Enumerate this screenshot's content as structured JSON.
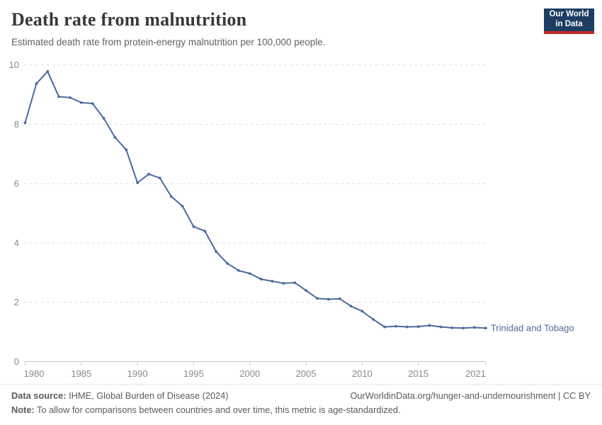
{
  "header": {
    "title": "Death rate from malnutrition",
    "subtitle": "Estimated death rate from protein-energy malnutrition per 100,000 people.",
    "logo": {
      "line1": "Our World",
      "line2": "in Data",
      "bg_color": "#1d3d63",
      "accent_color": "#c5292a"
    }
  },
  "chart_data": {
    "type": "line",
    "title": "Death rate from malnutrition",
    "xlabel": "",
    "ylabel": "",
    "x_range": [
      1980,
      2021
    ],
    "ylim": [
      0,
      10
    ],
    "x_ticks": [
      1980,
      1985,
      1990,
      1995,
      2000,
      2005,
      2010,
      2015,
      2021
    ],
    "y_ticks": [
      0,
      2,
      4,
      6,
      8,
      10
    ],
    "grid": "horizontal-dashed",
    "legend_position": "end-of-line-label",
    "line_color": "#4C6A9C",
    "axis_text_color": "#8a8a8a",
    "series": [
      {
        "name": "Trinidad and Tobago",
        "x": [
          1980,
          1981,
          1982,
          1983,
          1984,
          1985,
          1986,
          1987,
          1988,
          1989,
          1990,
          1991,
          1992,
          1993,
          1994,
          1995,
          1996,
          1997,
          1998,
          1999,
          2000,
          2001,
          2002,
          2003,
          2004,
          2005,
          2006,
          2007,
          2008,
          2009,
          2010,
          2011,
          2012,
          2013,
          2014,
          2015,
          2016,
          2017,
          2018,
          2019,
          2020,
          2021
        ],
        "values": [
          8.05,
          9.37,
          9.78,
          8.93,
          8.9,
          8.73,
          8.7,
          8.2,
          7.56,
          7.14,
          6.03,
          6.32,
          6.19,
          5.57,
          5.24,
          4.55,
          4.4,
          3.71,
          3.31,
          3.07,
          2.97,
          2.78,
          2.71,
          2.64,
          2.66,
          2.4,
          2.13,
          2.1,
          2.12,
          1.87,
          1.7,
          1.42,
          1.17,
          1.19,
          1.17,
          1.18,
          1.22,
          1.17,
          1.14,
          1.13,
          1.15,
          1.13
        ]
      }
    ]
  },
  "footer": {
    "datasource_label": "Data source:",
    "datasource_text": " IHME, Global Burden of Disease (2024)",
    "link": "OurWorldinData.org/hunger-and-undernourishment | CC BY",
    "note_label": "Note:",
    "note_text": " To allow for comparisons between countries and over time, this metric is age-standardized."
  }
}
